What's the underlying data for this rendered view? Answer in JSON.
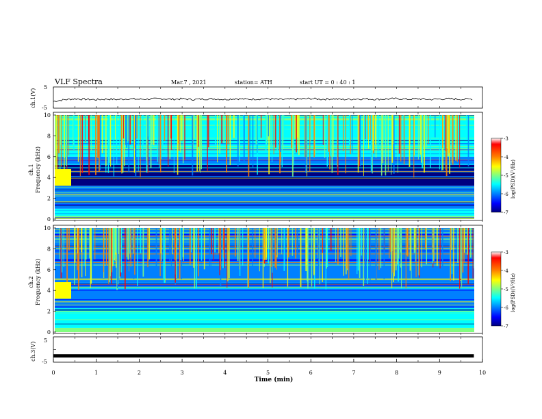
{
  "header": {
    "title": "VLF Spectra",
    "date": "Mar.7  , 2021",
    "station": "station= ATH",
    "start_ut": "start  UT =   0 : 40 : 1"
  },
  "colors": {
    "frame": "#000000",
    "spectrogram_background": "#1f56d6",
    "colormap": [
      "#000080",
      "#0000ff",
      "#0080ff",
      "#00ffff",
      "#80ff80",
      "#ffff00",
      "#ff8000",
      "#ff0000",
      "#800000"
    ]
  },
  "chart_data": [
    {
      "id": "ch1_waveform",
      "type": "line",
      "ylabel": "ch.1(V)",
      "ylim": [
        -5,
        5
      ],
      "yticks": [
        "5",
        "-5"
      ],
      "xlim": [
        0,
        10
      ],
      "series": [
        {
          "x": [
            0,
            0.25,
            0.5,
            0.75,
            1.0,
            1.25,
            1.5,
            1.75,
            2.0,
            2.25,
            2.5,
            2.75,
            3.0,
            3.25,
            3.5,
            3.75,
            4.0,
            4.25,
            4.5,
            4.75,
            5.0,
            5.25,
            5.5,
            5.75,
            6.0,
            6.25,
            6.5,
            6.75,
            7.0,
            7.25,
            7.5,
            7.75,
            8.0,
            8.25,
            8.5,
            8.75,
            9.0,
            9.25,
            9.5,
            9.8
          ],
          "values": [
            -1.8,
            -1.0,
            -0.6,
            -0.8,
            -1.0,
            -0.7,
            -0.9,
            -0.6,
            -0.8,
            -0.7,
            -0.5,
            -0.8,
            -0.6,
            -0.9,
            -0.7,
            -0.6,
            -0.9,
            -0.5,
            -0.8,
            -0.7,
            -0.6,
            -0.9,
            -0.8,
            -0.7,
            -0.5,
            -0.8,
            -0.6,
            -0.9,
            -0.7,
            -0.6,
            -0.8,
            -0.7,
            -0.5,
            -0.8,
            -0.6,
            -0.9,
            -0.7,
            -0.6,
            -0.8,
            -0.7
          ]
        }
      ]
    },
    {
      "id": "ch1_spectrogram",
      "type": "heatmap",
      "ylabel": "ch.1\nFrequency (kHz)",
      "ylim": [
        0,
        10
      ],
      "yticks": [
        "0",
        "2",
        "4",
        "6",
        "8",
        "10"
      ],
      "xlim": [
        0,
        10
      ],
      "colorbar": {
        "label": "log(PSD)(V²/Hz)",
        "range": [
          -7,
          -3
        ],
        "ticks": [
          "-3",
          "-4",
          "-5",
          "-6",
          "-7"
        ]
      },
      "bands": [
        {
          "from": 0,
          "to": 0.3,
          "level": -5.2
        },
        {
          "from": 0.3,
          "to": 1.0,
          "level": -5.4
        },
        {
          "from": 1.0,
          "to": 2.3,
          "level": -5.8
        },
        {
          "from": 2.3,
          "to": 3.2,
          "level": -5.9
        },
        {
          "from": 3.2,
          "to": 5.2,
          "level": -6.8
        },
        {
          "from": 5.2,
          "to": 6.0,
          "level": -6.2
        },
        {
          "from": 6.0,
          "to": 10,
          "level": -5.6
        }
      ]
    },
    {
      "id": "ch2_spectrogram",
      "type": "heatmap",
      "ylabel": "ch.2\nFrequency (kHz)",
      "ylim": [
        0,
        10
      ],
      "yticks": [
        "0",
        "2",
        "4",
        "6",
        "8",
        "10"
      ],
      "xlim": [
        0,
        10
      ],
      "colorbar": {
        "label": "log(PSD)(V²/Hz)",
        "range": [
          -7,
          -3
        ],
        "ticks": [
          "-3",
          "-4",
          "-5",
          "-6",
          "-7"
        ]
      },
      "bands": [
        {
          "from": 0,
          "to": 0.4,
          "level": -5.0
        },
        {
          "from": 0.4,
          "to": 2.3,
          "level": -5.3
        },
        {
          "from": 2.3,
          "to": 4.8,
          "level": -6.0
        },
        {
          "from": 4.8,
          "to": 10,
          "level": -6.0
        }
      ]
    },
    {
      "id": "ch3_waveform",
      "type": "line",
      "ylabel": "ch.3(V)",
      "ylim": [
        -5,
        5
      ],
      "yticks": [
        "5",
        "0",
        "-5"
      ],
      "xlim": [
        0,
        10
      ],
      "xlabel": "Time (min)",
      "xticks": [
        "0",
        "1",
        "2",
        "3",
        "4",
        "5",
        "6",
        "7",
        "8",
        "9",
        "10"
      ],
      "series": [
        {
          "x": [
            0,
            9.8
          ],
          "values": [
            -2.5,
            -2.5
          ]
        }
      ]
    }
  ]
}
